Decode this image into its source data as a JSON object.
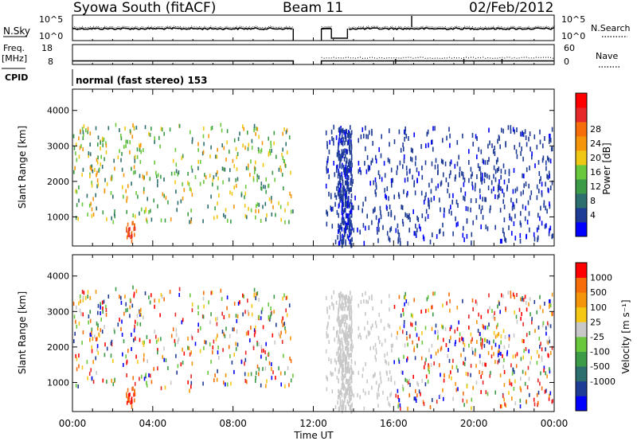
{
  "header": {
    "station": "Syowa South (fitACF)",
    "beam": "Beam 11",
    "date": "02/Feb/2012"
  },
  "labels": {
    "nsky": "N.Sky",
    "nsky_tick_top": "10^5",
    "nsky_tick_bot": "10^0",
    "nsearch": "N.Search",
    "nsearch_tick_top": "10^5",
    "nsearch_tick_bot": "10^0",
    "freq": "Freq.",
    "freq_unit": "[MHz]",
    "freq_tick_top": "18",
    "freq_tick_bot": "8",
    "nave": "Nave",
    "nave_tick_top": "60",
    "nave_tick_bot": "0",
    "cpid": "CPID",
    "mode": "normal (fast stereo) 153",
    "slant_range": "Slant Range [km]",
    "time_ut": "Time UT",
    "power_label": "Power [dB]",
    "velocity_label": "Velocity [m s⁻¹]"
  },
  "chart_data": [
    {
      "type": "line",
      "title": "N.Sky / N.Search",
      "x_range_hours": [
        0,
        24
      ],
      "gaps": [
        [
          11.0,
          12.4
        ],
        [
          12.9,
          13.7
        ]
      ],
      "series": [
        {
          "name": "N.Sky",
          "style": "solid",
          "level": "~10^3",
          "values": "near-constant"
        },
        {
          "name": "N.Search",
          "style": "dotted",
          "level": "~10^3",
          "values": "near-constant"
        }
      ]
    },
    {
      "type": "line",
      "title": "Freq. / Nave",
      "x_range_hours": [
        0,
        24
      ],
      "freq_range_mhz": [
        8,
        18
      ],
      "nave_range": [
        0,
        60
      ],
      "series": [
        {
          "name": "Freq.",
          "style": "solid",
          "value_mhz": 10
        },
        {
          "name": "Nave",
          "style": "dotted",
          "value_after_1230": 20
        }
      ]
    },
    {
      "type": "scatter",
      "title": "Power",
      "xlabel": "Time UT",
      "ylabel": "Slant Range [km]",
      "x_ticks": [
        "00:00",
        "04:00",
        "08:00",
        "12:00",
        "16:00",
        "20:00",
        "00:00"
      ],
      "x_range_hours": [
        0,
        24
      ],
      "y_ticks": [
        1000,
        2000,
        3000,
        4000
      ],
      "y_range_km": [
        180,
        4600
      ],
      "colorbar": {
        "label": "Power [dB]",
        "ticks": [
          4,
          8,
          12,
          16,
          20,
          24,
          28
        ],
        "colors": [
          "#0000ff",
          "#1e3c96",
          "#2d6e6e",
          "#3c9b46",
          "#69c83c",
          "#f0c814",
          "#f5960a",
          "#f56e0a",
          "#e62828",
          "#ff0000"
        ]
      },
      "regions": [
        {
          "x": [
            0.0,
            11.0
          ],
          "y": [
            1000,
            3600
          ],
          "power_db": "12-20"
        },
        {
          "x": [
            2.6,
            3.1
          ],
          "y": [
            350,
            900
          ],
          "power_db": "24-28"
        },
        {
          "x": [
            12.6,
            24.0
          ],
          "y": [
            300,
            3600
          ],
          "power_db": "4-8"
        }
      ]
    },
    {
      "type": "scatter",
      "title": "Velocity",
      "xlabel": "Time UT",
      "ylabel": "Slant Range [km]",
      "x_ticks": [
        "00:00",
        "04:00",
        "08:00",
        "12:00",
        "16:00",
        "20:00",
        "00:00"
      ],
      "x_range_hours": [
        0,
        24
      ],
      "y_ticks": [
        1000,
        2000,
        3000,
        4000
      ],
      "y_range_km": [
        180,
        4600
      ],
      "colorbar": {
        "label": "Velocity [m s⁻¹]",
        "ticks": [
          "1000",
          "500",
          "100",
          "25",
          "-25",
          "-100",
          "-500",
          "-1000"
        ],
        "colors": [
          "#0000ff",
          "#1e3c96",
          "#2d6e6e",
          "#3c9b46",
          "#69c83c",
          "#c8c8c8",
          "#f5c814",
          "#f5960a",
          "#f56e0a",
          "#ff0000"
        ]
      }
    }
  ]
}
